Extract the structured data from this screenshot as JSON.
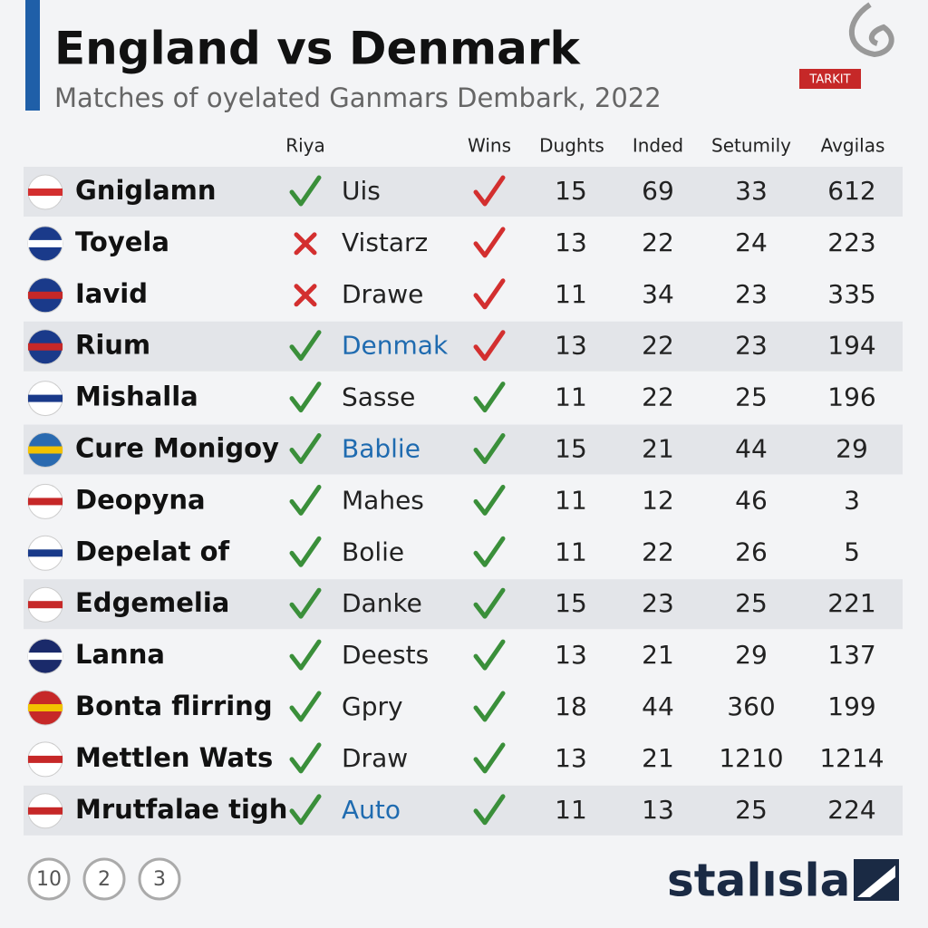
{
  "header": {
    "title": "England vs Denmark",
    "subtitle": "Matches of oyelated Ganmars Dembark, 2022",
    "badge": "TARKIT"
  },
  "table": {
    "columns": [
      "Riya",
      "Wins",
      "Dughts",
      "Inded",
      "Setumily",
      "Avgilas"
    ],
    "rows": [
      {
        "name": "Gniglamn",
        "riya_ok": true,
        "text": "Uis",
        "blue": false,
        "wins_red": true,
        "values": [
          15,
          69,
          33,
          612
        ],
        "highlight": true
      },
      {
        "name": "Toyela",
        "riya_ok": false,
        "text": "Vistarz",
        "blue": false,
        "wins_red": true,
        "values": [
          13,
          22,
          24,
          223
        ],
        "highlight": false
      },
      {
        "name": "Iavid",
        "riya_ok": false,
        "text": "Drawe",
        "blue": false,
        "wins_red": true,
        "values": [
          11,
          34,
          23,
          335
        ],
        "highlight": false
      },
      {
        "name": "Rium",
        "riya_ok": true,
        "text": "Denmak",
        "blue": true,
        "wins_red": true,
        "values": [
          13,
          22,
          23,
          194
        ],
        "highlight": true
      },
      {
        "name": "Mishalla",
        "riya_ok": true,
        "text": "Sasse",
        "blue": false,
        "wins_red": false,
        "values": [
          11,
          22,
          25,
          196
        ],
        "highlight": false
      },
      {
        "name": "Cure Monigoy",
        "riya_ok": true,
        "text": "Bablie",
        "blue": true,
        "wins_red": false,
        "values": [
          15,
          21,
          44,
          29
        ],
        "highlight": true
      },
      {
        "name": "Deopyna",
        "riya_ok": true,
        "text": "Mahes",
        "blue": false,
        "wins_red": false,
        "values": [
          11,
          12,
          46,
          3
        ],
        "highlight": false
      },
      {
        "name": "Depelat of",
        "riya_ok": true,
        "text": "Bolie",
        "blue": false,
        "wins_red": false,
        "values": [
          11,
          22,
          26,
          5
        ],
        "highlight": false
      },
      {
        "name": "Edgemelia",
        "riya_ok": true,
        "text": "Danke",
        "blue": false,
        "wins_red": false,
        "values": [
          15,
          23,
          25,
          221
        ],
        "highlight": true
      },
      {
        "name": "Lanna",
        "riya_ok": true,
        "text": "Deests",
        "blue": false,
        "wins_red": false,
        "values": [
          13,
          21,
          29,
          137
        ],
        "highlight": false
      },
      {
        "name": "Bonta flirring",
        "riya_ok": true,
        "text": "Gpry",
        "blue": false,
        "wins_red": false,
        "values": [
          18,
          44,
          360,
          199
        ],
        "highlight": false
      },
      {
        "name": "Mettlen Wats",
        "riya_ok": true,
        "text": "Draw",
        "blue": false,
        "wins_red": false,
        "values": [
          13,
          21,
          1210,
          1214
        ],
        "highlight": false
      },
      {
        "name": "Mrutfalae tigh",
        "riya_ok": true,
        "text": "Auto",
        "blue": true,
        "wins_red": false,
        "values": [
          11,
          13,
          25,
          224
        ],
        "highlight": true
      }
    ]
  },
  "pagination": [
    "10",
    "2",
    "3"
  ],
  "logo": "stalısla"
}
